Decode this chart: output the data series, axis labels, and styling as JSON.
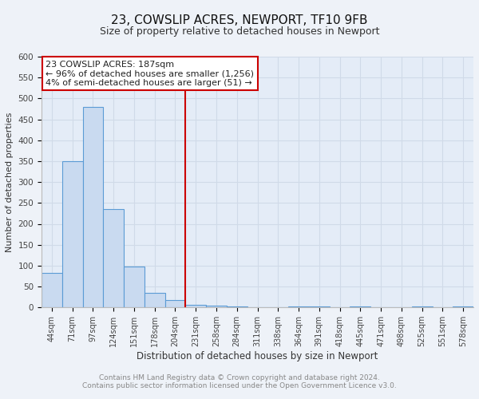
{
  "title": "23, COWSLIP ACRES, NEWPORT, TF10 9FB",
  "subtitle": "Size of property relative to detached houses in Newport",
  "xlabel": "Distribution of detached houses by size in Newport",
  "ylabel": "Number of detached properties",
  "bar_labels": [
    "44sqm",
    "71sqm",
    "97sqm",
    "124sqm",
    "151sqm",
    "178sqm",
    "204sqm",
    "231sqm",
    "258sqm",
    "284sqm",
    "311sqm",
    "338sqm",
    "364sqm",
    "391sqm",
    "418sqm",
    "445sqm",
    "471sqm",
    "498sqm",
    "525sqm",
    "551sqm",
    "578sqm"
  ],
  "bar_values": [
    82,
    350,
    480,
    236,
    97,
    35,
    18,
    7,
    5,
    3,
    0,
    0,
    3,
    2,
    0,
    2,
    0,
    0,
    2,
    0,
    2
  ],
  "bar_color": "#c9daf0",
  "bar_edge_color": "#5b9bd5",
  "ylim": [
    0,
    600
  ],
  "yticks": [
    0,
    50,
    100,
    150,
    200,
    250,
    300,
    350,
    400,
    450,
    500,
    550,
    600
  ],
  "vline_x": 6.5,
  "vline_color": "#cc0000",
  "annotation_text": "23 COWSLIP ACRES: 187sqm\n← 96% of detached houses are smaller (1,256)\n4% of semi-detached houses are larger (51) →",
  "annotation_box_color": "#ffffff",
  "annotation_box_edge": "#cc0000",
  "footer_line1": "Contains HM Land Registry data © Crown copyright and database right 2024.",
  "footer_line2": "Contains public sector information licensed under the Open Government Licence v3.0.",
  "background_color": "#eef2f8",
  "plot_background": "#e4ecf7",
  "grid_color": "#d0dae8",
  "title_fontsize": 11,
  "subtitle_fontsize": 9,
  "tick_fontsize": 7,
  "footer_fontsize": 6.5
}
